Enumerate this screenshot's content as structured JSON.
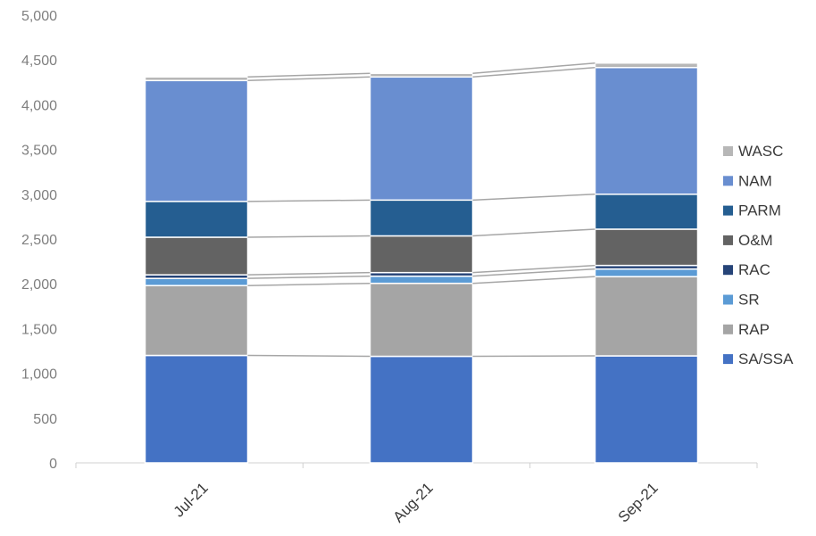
{
  "chart_data": {
    "type": "bar",
    "stacked": true,
    "categories": [
      "Jul-21",
      "Aug-21",
      "Sep-21"
    ],
    "ylim": [
      0,
      5000
    ],
    "yticks": [
      0,
      500,
      1000,
      1500,
      2000,
      2500,
      3000,
      3500,
      4000,
      4500,
      5000
    ],
    "ytick_labels": [
      "0",
      "500",
      "1,000",
      "1,500",
      "2,000",
      "2,500",
      "3,000",
      "3,500",
      "4,000",
      "4,500",
      "5,000"
    ],
    "title": "",
    "xlabel": "",
    "ylabel": "",
    "grid": false,
    "series_connector_lines": true,
    "legend_position": "right",
    "series": [
      {
        "name": "SA/SSA",
        "color": "#4472C4",
        "values": [
          1200,
          1190,
          1195
        ]
      },
      {
        "name": "RAP",
        "color": "#A5A5A5",
        "values": [
          780,
          815,
          885
        ]
      },
      {
        "name": "SR",
        "color": "#5B9BD5",
        "values": [
          80,
          80,
          85
        ]
      },
      {
        "name": "RAC",
        "color": "#264478",
        "values": [
          40,
          40,
          40
        ]
      },
      {
        "name": "O&M",
        "color": "#636363",
        "values": [
          420,
          410,
          405
        ]
      },
      {
        "name": "PARM",
        "color": "#255E91",
        "values": [
          400,
          400,
          390
        ]
      },
      {
        "name": "NAM",
        "color": "#698ED0",
        "values": [
          1350,
          1375,
          1415
        ]
      },
      {
        "name": "WASC",
        "color": "#B7B7B7",
        "values": [
          40,
          40,
          50
        ]
      }
    ]
  }
}
